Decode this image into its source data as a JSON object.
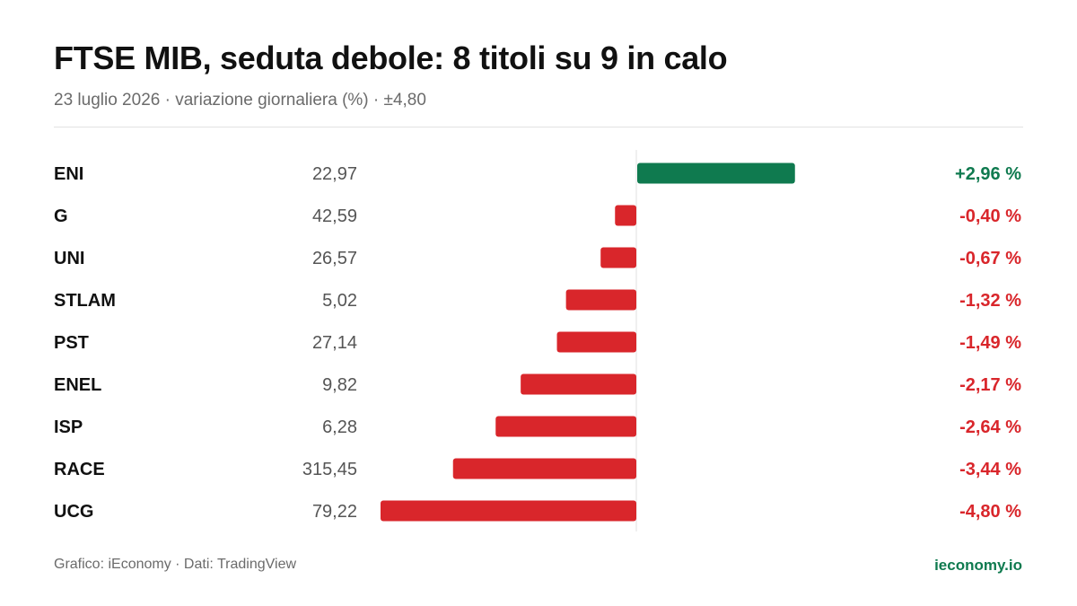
{
  "header": {
    "title": "FTSE MIB, seduta debole: 8 titoli su 9 in calo",
    "subtitle": "23 luglio 2026 · variazione giornaliera (%) · ±4,80"
  },
  "footer": {
    "credit": "Grafico: iEconomy · Dati: TradingView",
    "brand": "ieconomy.io"
  },
  "colors": {
    "positive": "#0f7a4f",
    "negative": "#d9262b",
    "axis": "#e0e0e0",
    "ticker": "#111111",
    "price": "#555555"
  },
  "chart_data": {
    "type": "bar",
    "orientation": "horizontal",
    "title": "FTSE MIB, seduta debole: 8 titoli su 9 in calo",
    "xlim": [
      -4.8,
      4.8
    ],
    "grid": false,
    "categories": [
      "ENI",
      "G",
      "UNI",
      "STLAM",
      "PST",
      "ENEL",
      "ISP",
      "RACE",
      "UCG"
    ],
    "prices": [
      "22,97",
      "42,59",
      "26,57",
      "5,02",
      "27,14",
      "9,82",
      "6,28",
      "315,45",
      "79,22"
    ],
    "values": [
      2.96,
      -0.4,
      -0.67,
      -1.32,
      -1.49,
      -2.17,
      -2.64,
      -3.44,
      -4.8
    ],
    "value_labels": [
      "+2,96 %",
      "-0,40 %",
      "-0,67 %",
      "-1,32 %",
      "-1,49 %",
      "-2,17 %",
      "-2,64 %",
      "-3,44 %",
      "-4,80 %"
    ]
  }
}
